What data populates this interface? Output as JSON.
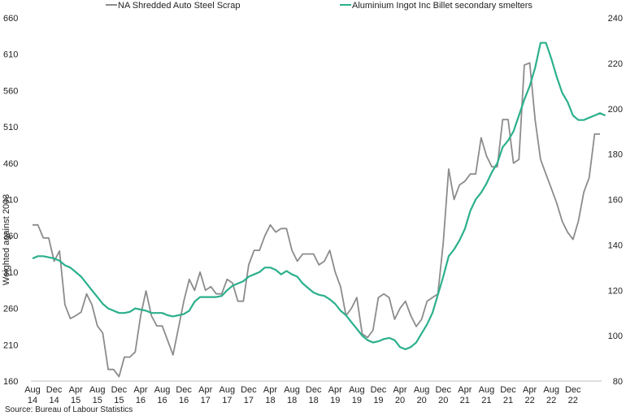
{
  "chart_data": {
    "type": "line",
    "title": "",
    "ylabel": "Weighted against 2003",
    "y2label": "",
    "xlabel": "",
    "source": "Source: Bureau of Labour Statistics",
    "legend_position": "top",
    "grid": false,
    "ylim": [
      160,
      660
    ],
    "y_ticks": [
      160,
      210,
      260,
      310,
      360,
      410,
      460,
      510,
      560,
      610,
      660
    ],
    "y2lim": [
      80,
      240
    ],
    "y2_ticks": [
      80,
      100,
      120,
      140,
      160,
      180,
      200,
      220,
      240
    ],
    "x_start": "2014-08",
    "x_ticks": [
      {
        "month": "Aug",
        "year": "14"
      },
      {
        "month": "Dec",
        "year": "14"
      },
      {
        "month": "Apr",
        "year": "15"
      },
      {
        "month": "Aug",
        "year": "15"
      },
      {
        "month": "Dec",
        "year": "15"
      },
      {
        "month": "Apr",
        "year": "16"
      },
      {
        "month": "Aug",
        "year": "16"
      },
      {
        "month": "Dec",
        "year": "16"
      },
      {
        "month": "Apr",
        "year": "17"
      },
      {
        "month": "Aug",
        "year": "17"
      },
      {
        "month": "Dec",
        "year": "17"
      },
      {
        "month": "Apr",
        "year": "18"
      },
      {
        "month": "Aug",
        "year": "18"
      },
      {
        "month": "Dec",
        "year": "18"
      },
      {
        "month": "Apr",
        "year": "19"
      },
      {
        "month": "Aug",
        "year": "19"
      },
      {
        "month": "Dec",
        "year": "19"
      },
      {
        "month": "Apr",
        "year": "20"
      },
      {
        "month": "Aug",
        "year": "20"
      },
      {
        "month": "Dec",
        "year": "20"
      },
      {
        "month": "Apr",
        "year": "21"
      },
      {
        "month": "Aug",
        "year": "21"
      },
      {
        "month": "Dec",
        "year": "21"
      },
      {
        "month": "Apr",
        "year": "22"
      },
      {
        "month": "Aug",
        "year": "22"
      },
      {
        "month": "Dec",
        "year": "22"
      }
    ],
    "series": [
      {
        "name": "NA Shredded Auto Steel Scrap",
        "axis": "left",
        "color": "#8c8c8c",
        "values": [
          375,
          375,
          357,
          357,
          325,
          339,
          265,
          246,
          250,
          255,
          280,
          265,
          236,
          226,
          176,
          176,
          166,
          193,
          193,
          200,
          250,
          284,
          250,
          236,
          236,
          216,
          196,
          233,
          270,
          300,
          285,
          310,
          285,
          290,
          280,
          280,
          300,
          295,
          270,
          270,
          320,
          340,
          340,
          360,
          375,
          365,
          370,
          370,
          340,
          325,
          335,
          335,
          335,
          320,
          325,
          340,
          310,
          290,
          250,
          260,
          275,
          225,
          220,
          230,
          275,
          280,
          275,
          245,
          260,
          270,
          250,
          235,
          245,
          270,
          275,
          280,
          350,
          452,
          410,
          430,
          435,
          445,
          445,
          495,
          470,
          455,
          455,
          520,
          520,
          460,
          465,
          595,
          598,
          520,
          465,
          445,
          425,
          405,
          380,
          365,
          355,
          380,
          420,
          440,
          500,
          500
        ]
      },
      {
        "name": "Aluminium Ingot Inc Billet secondary smelters",
        "axis": "right",
        "color": "#2bb08c",
        "values": [
          134,
          135,
          135,
          134.5,
          134,
          133,
          131,
          130,
          128,
          126,
          123,
          120,
          117,
          114,
          112,
          111,
          110,
          110,
          110.5,
          112,
          111.5,
          111,
          110,
          110,
          110,
          109,
          108.5,
          109,
          109.5,
          111,
          115,
          117,
          117,
          117,
          117,
          117.5,
          120,
          122,
          123,
          124,
          126,
          127,
          128,
          130,
          130,
          129,
          127,
          128.5,
          127,
          126,
          123,
          121,
          119,
          118,
          117.5,
          116,
          114,
          111,
          109,
          106,
          103,
          100,
          98,
          97,
          97.5,
          98.5,
          99,
          98,
          95,
          94,
          95,
          97,
          101,
          105,
          110,
          118,
          126,
          135,
          138,
          142,
          147,
          155,
          160,
          163,
          167,
          172,
          176,
          183,
          186,
          190,
          197,
          204,
          210,
          218,
          229,
          229,
          222,
          214,
          207,
          203,
          197,
          195,
          195,
          196,
          197,
          198,
          197
        ]
      }
    ]
  }
}
